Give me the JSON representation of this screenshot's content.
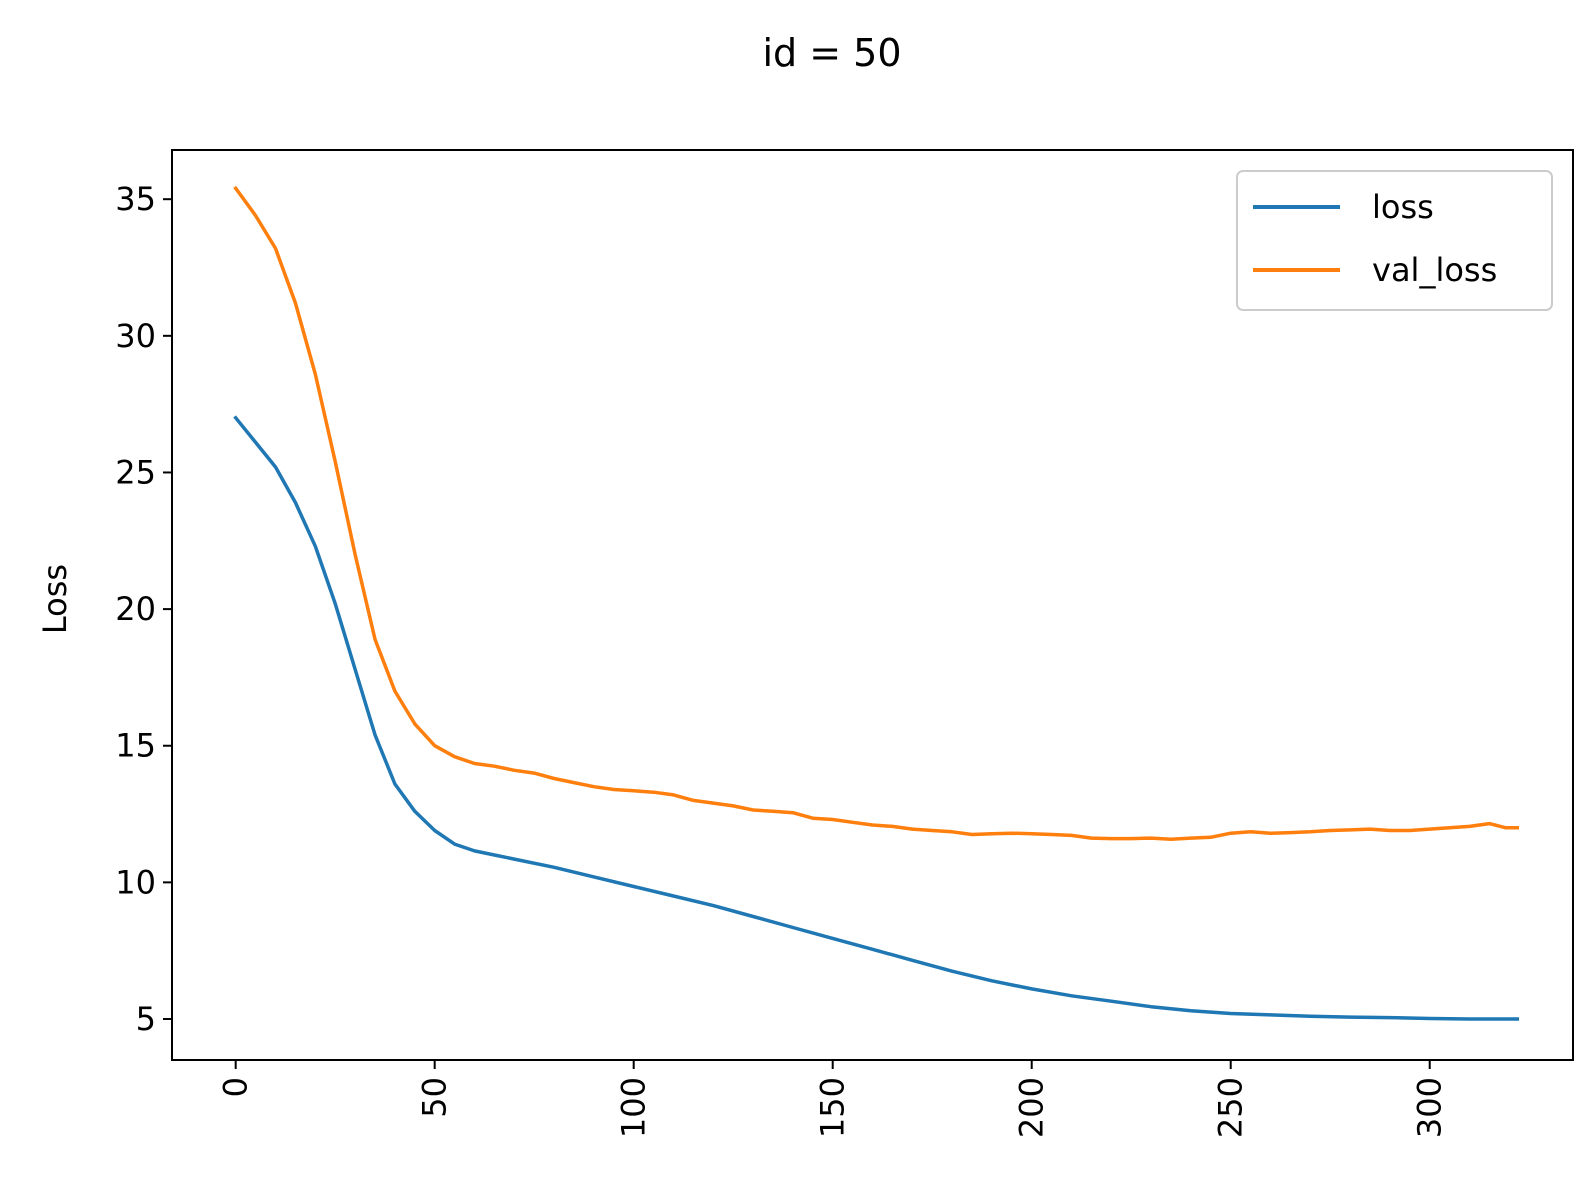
{
  "chart_data": {
    "type": "line",
    "title": "id = 50",
    "xlabel": "",
    "ylabel": "Loss",
    "xlim": [
      -16,
      336
    ],
    "ylim": [
      3.5,
      36.8
    ],
    "xticks": [
      0,
      50,
      100,
      150,
      200,
      250,
      300
    ],
    "yticks": [
      5,
      10,
      15,
      20,
      25,
      30,
      35
    ],
    "grid": false,
    "legend_position": "top-right",
    "series": [
      {
        "name": "loss",
        "color": "#1f77b4",
        "x": [
          0,
          5,
          10,
          15,
          20,
          25,
          30,
          35,
          40,
          45,
          50,
          55,
          60,
          65,
          70,
          80,
          90,
          100,
          110,
          120,
          130,
          140,
          150,
          160,
          170,
          180,
          190,
          200,
          210,
          220,
          230,
          240,
          250,
          260,
          270,
          280,
          290,
          300,
          310,
          322
        ],
        "y": [
          27.0,
          26.1,
          25.2,
          23.9,
          22.3,
          20.2,
          17.8,
          15.4,
          13.6,
          12.6,
          11.9,
          11.4,
          11.15,
          11.0,
          10.85,
          10.55,
          10.2,
          9.85,
          9.5,
          9.15,
          8.75,
          8.35,
          7.95,
          7.55,
          7.15,
          6.75,
          6.4,
          6.1,
          5.85,
          5.65,
          5.45,
          5.3,
          5.2,
          5.15,
          5.1,
          5.07,
          5.05,
          5.02,
          5.0,
          5.0
        ]
      },
      {
        "name": "val_loss",
        "color": "#ff7f0e",
        "x": [
          0,
          5,
          10,
          15,
          20,
          25,
          30,
          35,
          40,
          45,
          50,
          55,
          60,
          65,
          70,
          75,
          80,
          85,
          90,
          95,
          100,
          105,
          110,
          115,
          120,
          125,
          130,
          135,
          140,
          145,
          150,
          155,
          160,
          165,
          170,
          175,
          180,
          185,
          190,
          195,
          200,
          205,
          210,
          215,
          220,
          225,
          230,
          235,
          240,
          245,
          250,
          255,
          260,
          265,
          270,
          275,
          280,
          285,
          290,
          295,
          300,
          305,
          310,
          315,
          319,
          322
        ],
        "y": [
          35.4,
          34.4,
          33.2,
          31.2,
          28.6,
          25.4,
          22.0,
          18.9,
          17.0,
          15.8,
          15.0,
          14.6,
          14.35,
          14.25,
          14.1,
          14.0,
          13.8,
          13.65,
          13.5,
          13.4,
          13.35,
          13.3,
          13.2,
          13.0,
          12.9,
          12.8,
          12.65,
          12.6,
          12.55,
          12.35,
          12.3,
          12.2,
          12.1,
          12.05,
          11.95,
          11.9,
          11.85,
          11.75,
          11.78,
          11.8,
          11.78,
          11.75,
          11.72,
          11.62,
          11.6,
          11.6,
          11.62,
          11.58,
          11.62,
          11.65,
          11.8,
          11.85,
          11.8,
          11.82,
          11.85,
          11.9,
          11.92,
          11.95,
          11.9,
          11.9,
          11.95,
          12.0,
          12.05,
          12.15,
          12.0,
          12.0
        ]
      }
    ]
  }
}
